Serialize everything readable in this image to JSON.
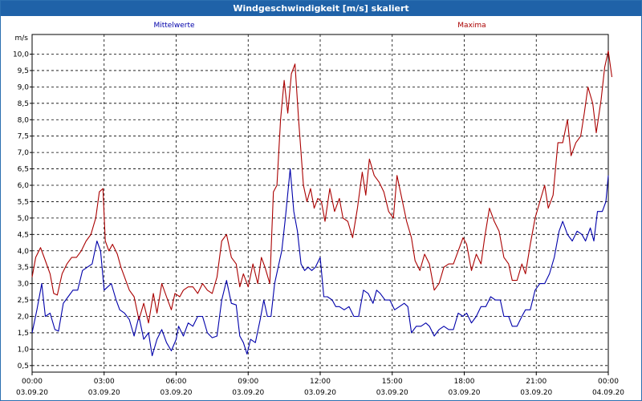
{
  "window": {
    "title": "Windgeschwindigkeit [m/s] skaliert"
  },
  "chart_data": {
    "type": "line",
    "ylabel": "m/s",
    "ylim": [
      0.3,
      10.6
    ],
    "yticks": [
      "0,5",
      "1,0",
      "1,5",
      "2,0",
      "2,5",
      "3,0",
      "3,5",
      "4,0",
      "4,5",
      "5,0",
      "5,5",
      "6,0",
      "6,5",
      "7,0",
      "7,5",
      "8,0",
      "8,5",
      "9,0",
      "9,5",
      "10,0"
    ],
    "xlim_hours": [
      0,
      24
    ],
    "xticks": [
      {
        "time": "00:00",
        "date": "03.09.20"
      },
      {
        "time": "03:00",
        "date": "03.09.20"
      },
      {
        "time": "06:00",
        "date": "03.09.20"
      },
      {
        "time": "09:00",
        "date": "03.09.20"
      },
      {
        "time": "12:00",
        "date": "03.09.20"
      },
      {
        "time": "15:00",
        "date": "03.09.20"
      },
      {
        "time": "18:00",
        "date": "03.09.20"
      },
      {
        "time": "21:00",
        "date": "03.09.20"
      },
      {
        "time": "00:00",
        "date": "04.09.20"
      }
    ],
    "grid": true,
    "series": [
      {
        "name": "Mittelwerte",
        "color": "#0000aa",
        "points": [
          [
            0.0,
            1.5
          ],
          [
            0.2,
            2.2
          ],
          [
            0.4,
            3.0
          ],
          [
            0.55,
            2.0
          ],
          [
            0.75,
            2.1
          ],
          [
            0.95,
            1.6
          ],
          [
            1.1,
            1.55
          ],
          [
            1.3,
            2.4
          ],
          [
            1.5,
            2.6
          ],
          [
            1.7,
            2.8
          ],
          [
            1.9,
            2.8
          ],
          [
            2.1,
            3.4
          ],
          [
            2.3,
            3.5
          ],
          [
            2.5,
            3.6
          ],
          [
            2.7,
            4.3
          ],
          [
            2.85,
            4.0
          ],
          [
            3.0,
            2.8
          ],
          [
            3.15,
            2.9
          ],
          [
            3.3,
            3.0
          ],
          [
            3.5,
            2.5
          ],
          [
            3.65,
            2.2
          ],
          [
            3.85,
            2.1
          ],
          [
            4.05,
            1.9
          ],
          [
            4.25,
            1.4
          ],
          [
            4.45,
            2.0
          ],
          [
            4.65,
            1.3
          ],
          [
            4.85,
            1.5
          ],
          [
            5.0,
            0.8
          ],
          [
            5.2,
            1.3
          ],
          [
            5.4,
            1.6
          ],
          [
            5.6,
            1.2
          ],
          [
            5.8,
            0.95
          ],
          [
            6.0,
            1.3
          ],
          [
            6.1,
            1.7
          ],
          [
            6.3,
            1.4
          ],
          [
            6.5,
            1.8
          ],
          [
            6.7,
            1.7
          ],
          [
            6.9,
            2.0
          ],
          [
            7.1,
            2.0
          ],
          [
            7.3,
            1.5
          ],
          [
            7.5,
            1.35
          ],
          [
            7.7,
            1.4
          ],
          [
            7.9,
            2.5
          ],
          [
            8.1,
            3.1
          ],
          [
            8.3,
            2.4
          ],
          [
            8.5,
            2.35
          ],
          [
            8.65,
            1.4
          ],
          [
            8.8,
            1.2
          ],
          [
            8.95,
            0.85
          ],
          [
            9.1,
            1.3
          ],
          [
            9.3,
            1.2
          ],
          [
            9.5,
            1.9
          ],
          [
            9.65,
            2.5
          ],
          [
            9.8,
            2.0
          ],
          [
            9.95,
            2.0
          ],
          [
            10.1,
            3.0
          ],
          [
            10.25,
            3.5
          ],
          [
            10.4,
            4.0
          ],
          [
            10.55,
            5.0
          ],
          [
            10.75,
            6.5
          ],
          [
            10.9,
            5.2
          ],
          [
            11.05,
            4.6
          ],
          [
            11.2,
            3.6
          ],
          [
            11.35,
            3.4
          ],
          [
            11.5,
            3.5
          ],
          [
            11.65,
            3.4
          ],
          [
            11.8,
            3.5
          ],
          [
            12.0,
            3.8
          ],
          [
            12.15,
            2.6
          ],
          [
            12.3,
            2.6
          ],
          [
            12.5,
            2.5
          ],
          [
            12.65,
            2.3
          ],
          [
            12.8,
            2.3
          ],
          [
            13.0,
            2.2
          ],
          [
            13.2,
            2.3
          ],
          [
            13.4,
            2.0
          ],
          [
            13.6,
            2.0
          ],
          [
            13.8,
            2.8
          ],
          [
            14.0,
            2.7
          ],
          [
            14.2,
            2.4
          ],
          [
            14.35,
            2.8
          ],
          [
            14.5,
            2.7
          ],
          [
            14.7,
            2.5
          ],
          [
            14.9,
            2.5
          ],
          [
            15.1,
            2.2
          ],
          [
            15.3,
            2.3
          ],
          [
            15.5,
            2.4
          ],
          [
            15.65,
            2.3
          ],
          [
            15.8,
            1.5
          ],
          [
            16.0,
            1.7
          ],
          [
            16.2,
            1.7
          ],
          [
            16.4,
            1.8
          ],
          [
            16.55,
            1.7
          ],
          [
            16.75,
            1.4
          ],
          [
            16.95,
            1.6
          ],
          [
            17.15,
            1.7
          ],
          [
            17.35,
            1.6
          ],
          [
            17.55,
            1.6
          ],
          [
            17.75,
            2.1
          ],
          [
            17.95,
            2.0
          ],
          [
            18.1,
            2.1
          ],
          [
            18.3,
            1.8
          ],
          [
            18.5,
            2.0
          ],
          [
            18.7,
            2.3
          ],
          [
            18.9,
            2.3
          ],
          [
            19.1,
            2.6
          ],
          [
            19.3,
            2.5
          ],
          [
            19.5,
            2.5
          ],
          [
            19.65,
            2.0
          ],
          [
            19.85,
            2.0
          ],
          [
            20.0,
            1.7
          ],
          [
            20.2,
            1.7
          ],
          [
            20.4,
            2.0
          ],
          [
            20.55,
            2.2
          ],
          [
            20.75,
            2.2
          ],
          [
            20.95,
            2.8
          ],
          [
            21.15,
            3.0
          ],
          [
            21.35,
            3.0
          ],
          [
            21.55,
            3.3
          ],
          [
            21.75,
            3.8
          ],
          [
            21.95,
            4.6
          ],
          [
            22.1,
            4.9
          ],
          [
            22.3,
            4.5
          ],
          [
            22.5,
            4.3
          ],
          [
            22.7,
            4.6
          ],
          [
            22.9,
            4.5
          ],
          [
            23.05,
            4.3
          ],
          [
            23.25,
            4.7
          ],
          [
            23.4,
            4.3
          ],
          [
            23.55,
            5.2
          ],
          [
            23.75,
            5.2
          ],
          [
            23.9,
            5.5
          ],
          [
            24.0,
            6.3
          ]
        ]
      },
      {
        "name": "Maxima",
        "color": "#aa0000",
        "points": [
          [
            0.0,
            3.2
          ],
          [
            0.15,
            3.8
          ],
          [
            0.35,
            4.1
          ],
          [
            0.55,
            3.7
          ],
          [
            0.75,
            3.3
          ],
          [
            0.9,
            2.7
          ],
          [
            1.05,
            2.65
          ],
          [
            1.25,
            3.3
          ],
          [
            1.45,
            3.6
          ],
          [
            1.65,
            3.8
          ],
          [
            1.85,
            3.8
          ],
          [
            2.05,
            4.0
          ],
          [
            2.25,
            4.3
          ],
          [
            2.45,
            4.5
          ],
          [
            2.65,
            5.0
          ],
          [
            2.8,
            5.8
          ],
          [
            2.95,
            5.9
          ],
          [
            3.05,
            4.3
          ],
          [
            3.2,
            4.0
          ],
          [
            3.35,
            4.2
          ],
          [
            3.55,
            3.9
          ],
          [
            3.7,
            3.5
          ],
          [
            3.9,
            3.1
          ],
          [
            4.05,
            2.8
          ],
          [
            4.25,
            2.6
          ],
          [
            4.45,
            1.9
          ],
          [
            4.65,
            2.4
          ],
          [
            4.85,
            1.8
          ],
          [
            5.05,
            2.7
          ],
          [
            5.2,
            2.1
          ],
          [
            5.4,
            3.0
          ],
          [
            5.6,
            2.6
          ],
          [
            5.8,
            2.2
          ],
          [
            5.95,
            2.7
          ],
          [
            6.15,
            2.6
          ],
          [
            6.3,
            2.8
          ],
          [
            6.5,
            2.9
          ],
          [
            6.7,
            2.9
          ],
          [
            6.9,
            2.7
          ],
          [
            7.1,
            3.0
          ],
          [
            7.3,
            2.8
          ],
          [
            7.5,
            2.7
          ],
          [
            7.7,
            3.2
          ],
          [
            7.9,
            4.3
          ],
          [
            8.1,
            4.5
          ],
          [
            8.3,
            3.8
          ],
          [
            8.5,
            3.6
          ],
          [
            8.65,
            2.9
          ],
          [
            8.8,
            3.3
          ],
          [
            9.0,
            2.9
          ],
          [
            9.2,
            3.6
          ],
          [
            9.4,
            3.0
          ],
          [
            9.55,
            3.8
          ],
          [
            9.7,
            3.5
          ],
          [
            9.9,
            3.0
          ],
          [
            10.05,
            5.8
          ],
          [
            10.2,
            6.0
          ],
          [
            10.35,
            8.0
          ],
          [
            10.5,
            9.2
          ],
          [
            10.65,
            8.2
          ],
          [
            10.8,
            9.4
          ],
          [
            10.95,
            9.7
          ],
          [
            11.1,
            8.0
          ],
          [
            11.3,
            6.0
          ],
          [
            11.45,
            5.5
          ],
          [
            11.6,
            5.9
          ],
          [
            11.75,
            5.3
          ],
          [
            11.9,
            5.6
          ],
          [
            12.05,
            5.5
          ],
          [
            12.2,
            4.9
          ],
          [
            12.4,
            5.9
          ],
          [
            12.6,
            5.2
          ],
          [
            12.8,
            5.6
          ],
          [
            12.95,
            5.0
          ],
          [
            13.15,
            4.9
          ],
          [
            13.35,
            4.4
          ],
          [
            13.55,
            5.3
          ],
          [
            13.75,
            6.4
          ],
          [
            13.9,
            5.7
          ],
          [
            14.05,
            6.8
          ],
          [
            14.25,
            6.3
          ],
          [
            14.45,
            6.1
          ],
          [
            14.65,
            5.8
          ],
          [
            14.85,
            5.2
          ],
          [
            15.05,
            5.0
          ],
          [
            15.2,
            6.3
          ],
          [
            15.4,
            5.6
          ],
          [
            15.6,
            4.9
          ],
          [
            15.8,
            4.4
          ],
          [
            15.95,
            3.7
          ],
          [
            16.15,
            3.4
          ],
          [
            16.35,
            3.9
          ],
          [
            16.55,
            3.6
          ],
          [
            16.75,
            2.8
          ],
          [
            16.95,
            3.0
          ],
          [
            17.15,
            3.5
          ],
          [
            17.35,
            3.6
          ],
          [
            17.55,
            3.6
          ],
          [
            17.75,
            4.0
          ],
          [
            17.95,
            4.4
          ],
          [
            18.1,
            4.2
          ],
          [
            18.3,
            3.4
          ],
          [
            18.5,
            3.9
          ],
          [
            18.7,
            3.6
          ],
          [
            18.85,
            4.4
          ],
          [
            19.05,
            5.3
          ],
          [
            19.25,
            4.9
          ],
          [
            19.45,
            4.6
          ],
          [
            19.65,
            3.8
          ],
          [
            19.85,
            3.6
          ],
          [
            20.0,
            3.1
          ],
          [
            20.2,
            3.1
          ],
          [
            20.4,
            3.6
          ],
          [
            20.55,
            3.3
          ],
          [
            20.75,
            4.2
          ],
          [
            20.95,
            5.0
          ],
          [
            21.15,
            5.5
          ],
          [
            21.35,
            6.0
          ],
          [
            21.5,
            5.3
          ],
          [
            21.7,
            5.7
          ],
          [
            21.9,
            7.3
          ],
          [
            22.1,
            7.3
          ],
          [
            22.3,
            8.0
          ],
          [
            22.45,
            6.9
          ],
          [
            22.65,
            7.3
          ],
          [
            22.85,
            7.5
          ],
          [
            23.0,
            8.2
          ],
          [
            23.15,
            9.0
          ],
          [
            23.35,
            8.5
          ],
          [
            23.5,
            7.6
          ],
          [
            23.7,
            8.6
          ],
          [
            23.85,
            9.6
          ],
          [
            24.0,
            10.1
          ],
          [
            24.15,
            9.3
          ]
        ]
      }
    ]
  }
}
